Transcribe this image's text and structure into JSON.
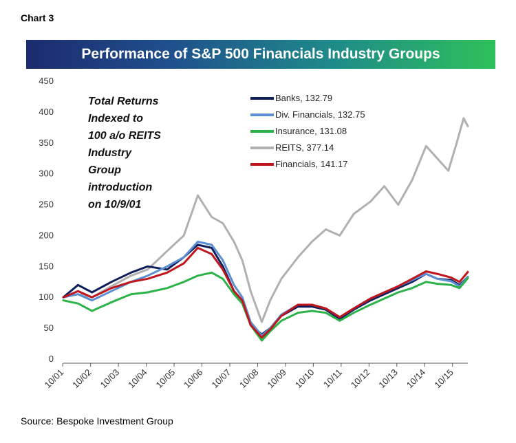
{
  "header": {
    "label": "Chart 3"
  },
  "footer": {
    "source": "Source: Bespoke Investment Group"
  },
  "chart_data": {
    "type": "line",
    "title": "Performance of S&P 500 Financials Industry Groups",
    "annotation": [
      "Total Returns",
      "Indexed to",
      "100 a/o REITS",
      "Industry",
      "Group",
      "introduction",
      "on 10/9/01"
    ],
    "ylim": [
      0,
      450
    ],
    "yticks": [
      0,
      50,
      100,
      150,
      200,
      250,
      300,
      350,
      400,
      450
    ],
    "xlim": [
      2001.77,
      2016.3
    ],
    "xticks": [
      2001.75,
      2002.75,
      2003.75,
      2004.75,
      2005.75,
      2006.75,
      2007.75,
      2008.75,
      2009.75,
      2010.75,
      2011.75,
      2012.75,
      2013.75,
      2014.75,
      2015.75
    ],
    "xtick_labels": [
      "10/01",
      "10/02",
      "10/03",
      "10/04",
      "10/05",
      "10/06",
      "10/07",
      "10/08",
      "10/09",
      "10/10",
      "10/11",
      "10/12",
      "10/13",
      "10/14",
      "10/15"
    ],
    "legend_position": "top-center",
    "series": [
      {
        "name": "Banks, 132.79",
        "color": "#0f1f5c",
        "points": [
          [
            2001.77,
            100
          ],
          [
            2002.3,
            120
          ],
          [
            2002.8,
            108
          ],
          [
            2003.5,
            125
          ],
          [
            2004.2,
            140
          ],
          [
            2004.8,
            150
          ],
          [
            2005.5,
            145
          ],
          [
            2006.1,
            165
          ],
          [
            2006.6,
            185
          ],
          [
            2007.1,
            180
          ],
          [
            2007.5,
            150
          ],
          [
            2007.9,
            110
          ],
          [
            2008.2,
            95
          ],
          [
            2008.5,
            55
          ],
          [
            2008.9,
            40
          ],
          [
            2009.2,
            50
          ],
          [
            2009.6,
            70
          ],
          [
            2010.2,
            85
          ],
          [
            2010.7,
            85
          ],
          [
            2011.2,
            80
          ],
          [
            2011.7,
            65
          ],
          [
            2012.2,
            80
          ],
          [
            2012.8,
            95
          ],
          [
            2013.3,
            105
          ],
          [
            2013.8,
            115
          ],
          [
            2014.3,
            125
          ],
          [
            2014.8,
            138
          ],
          [
            2015.2,
            130
          ],
          [
            2015.7,
            128
          ],
          [
            2016.0,
            120
          ],
          [
            2016.3,
            133
          ]
        ]
      },
      {
        "name": "Div. Financials, 132.75",
        "color": "#5b8fd1",
        "points": [
          [
            2001.77,
            100
          ],
          [
            2002.3,
            105
          ],
          [
            2002.8,
            95
          ],
          [
            2003.5,
            110
          ],
          [
            2004.2,
            125
          ],
          [
            2004.8,
            135
          ],
          [
            2005.5,
            150
          ],
          [
            2006.1,
            165
          ],
          [
            2006.6,
            190
          ],
          [
            2007.1,
            185
          ],
          [
            2007.5,
            160
          ],
          [
            2007.9,
            120
          ],
          [
            2008.2,
            100
          ],
          [
            2008.5,
            60
          ],
          [
            2008.9,
            38
          ],
          [
            2009.2,
            50
          ],
          [
            2009.6,
            72
          ],
          [
            2010.2,
            88
          ],
          [
            2010.7,
            88
          ],
          [
            2011.2,
            82
          ],
          [
            2011.7,
            68
          ],
          [
            2012.2,
            82
          ],
          [
            2012.8,
            98
          ],
          [
            2013.3,
            108
          ],
          [
            2013.8,
            118
          ],
          [
            2014.3,
            128
          ],
          [
            2014.8,
            138
          ],
          [
            2015.2,
            130
          ],
          [
            2015.7,
            126
          ],
          [
            2016.0,
            118
          ],
          [
            2016.3,
            133
          ]
        ]
      },
      {
        "name": "Insurance, 131.08",
        "color": "#2bb34a",
        "points": [
          [
            2001.77,
            95
          ],
          [
            2002.3,
            90
          ],
          [
            2002.8,
            78
          ],
          [
            2003.5,
            92
          ],
          [
            2004.2,
            105
          ],
          [
            2004.8,
            108
          ],
          [
            2005.5,
            115
          ],
          [
            2006.1,
            125
          ],
          [
            2006.6,
            135
          ],
          [
            2007.1,
            140
          ],
          [
            2007.5,
            130
          ],
          [
            2007.9,
            105
          ],
          [
            2008.2,
            90
          ],
          [
            2008.5,
            55
          ],
          [
            2008.9,
            30
          ],
          [
            2009.2,
            45
          ],
          [
            2009.6,
            62
          ],
          [
            2010.2,
            75
          ],
          [
            2010.7,
            78
          ],
          [
            2011.2,
            75
          ],
          [
            2011.7,
            62
          ],
          [
            2012.2,
            75
          ],
          [
            2012.8,
            88
          ],
          [
            2013.3,
            98
          ],
          [
            2013.8,
            108
          ],
          [
            2014.3,
            115
          ],
          [
            2014.8,
            125
          ],
          [
            2015.2,
            122
          ],
          [
            2015.7,
            120
          ],
          [
            2016.0,
            115
          ],
          [
            2016.3,
            131
          ]
        ]
      },
      {
        "name": "REITS, 377.14",
        "color": "#b0b0b0",
        "points": [
          [
            2001.77,
            100
          ],
          [
            2002.3,
            105
          ],
          [
            2002.8,
            100
          ],
          [
            2003.5,
            118
          ],
          [
            2004.2,
            135
          ],
          [
            2004.8,
            145
          ],
          [
            2005.5,
            175
          ],
          [
            2006.1,
            200
          ],
          [
            2006.6,
            265
          ],
          [
            2007.1,
            230
          ],
          [
            2007.5,
            220
          ],
          [
            2007.9,
            190
          ],
          [
            2008.2,
            160
          ],
          [
            2008.5,
            110
          ],
          [
            2008.9,
            60
          ],
          [
            2009.2,
            95
          ],
          [
            2009.6,
            130
          ],
          [
            2010.2,
            165
          ],
          [
            2010.7,
            190
          ],
          [
            2011.2,
            210
          ],
          [
            2011.7,
            200
          ],
          [
            2012.2,
            235
          ],
          [
            2012.8,
            255
          ],
          [
            2013.3,
            280
          ],
          [
            2013.8,
            250
          ],
          [
            2014.3,
            290
          ],
          [
            2014.8,
            345
          ],
          [
            2015.2,
            325
          ],
          [
            2015.6,
            305
          ],
          [
            2015.9,
            350
          ],
          [
            2016.15,
            390
          ],
          [
            2016.3,
            377
          ]
        ]
      },
      {
        "name": "Financials, 141.17",
        "color": "#c0151d",
        "points": [
          [
            2001.77,
            100
          ],
          [
            2002.3,
            110
          ],
          [
            2002.8,
            100
          ],
          [
            2003.5,
            115
          ],
          [
            2004.2,
            125
          ],
          [
            2004.8,
            130
          ],
          [
            2005.5,
            140
          ],
          [
            2006.1,
            155
          ],
          [
            2006.6,
            180
          ],
          [
            2007.1,
            170
          ],
          [
            2007.5,
            145
          ],
          [
            2007.9,
            110
          ],
          [
            2008.2,
            95
          ],
          [
            2008.5,
            55
          ],
          [
            2008.9,
            35
          ],
          [
            2009.2,
            48
          ],
          [
            2009.6,
            70
          ],
          [
            2010.2,
            88
          ],
          [
            2010.7,
            88
          ],
          [
            2011.2,
            82
          ],
          [
            2011.7,
            68
          ],
          [
            2012.2,
            82
          ],
          [
            2012.8,
            98
          ],
          [
            2013.3,
            108
          ],
          [
            2013.8,
            118
          ],
          [
            2014.3,
            130
          ],
          [
            2014.8,
            142
          ],
          [
            2015.2,
            138
          ],
          [
            2015.7,
            132
          ],
          [
            2016.0,
            125
          ],
          [
            2016.3,
            141
          ]
        ]
      }
    ]
  }
}
